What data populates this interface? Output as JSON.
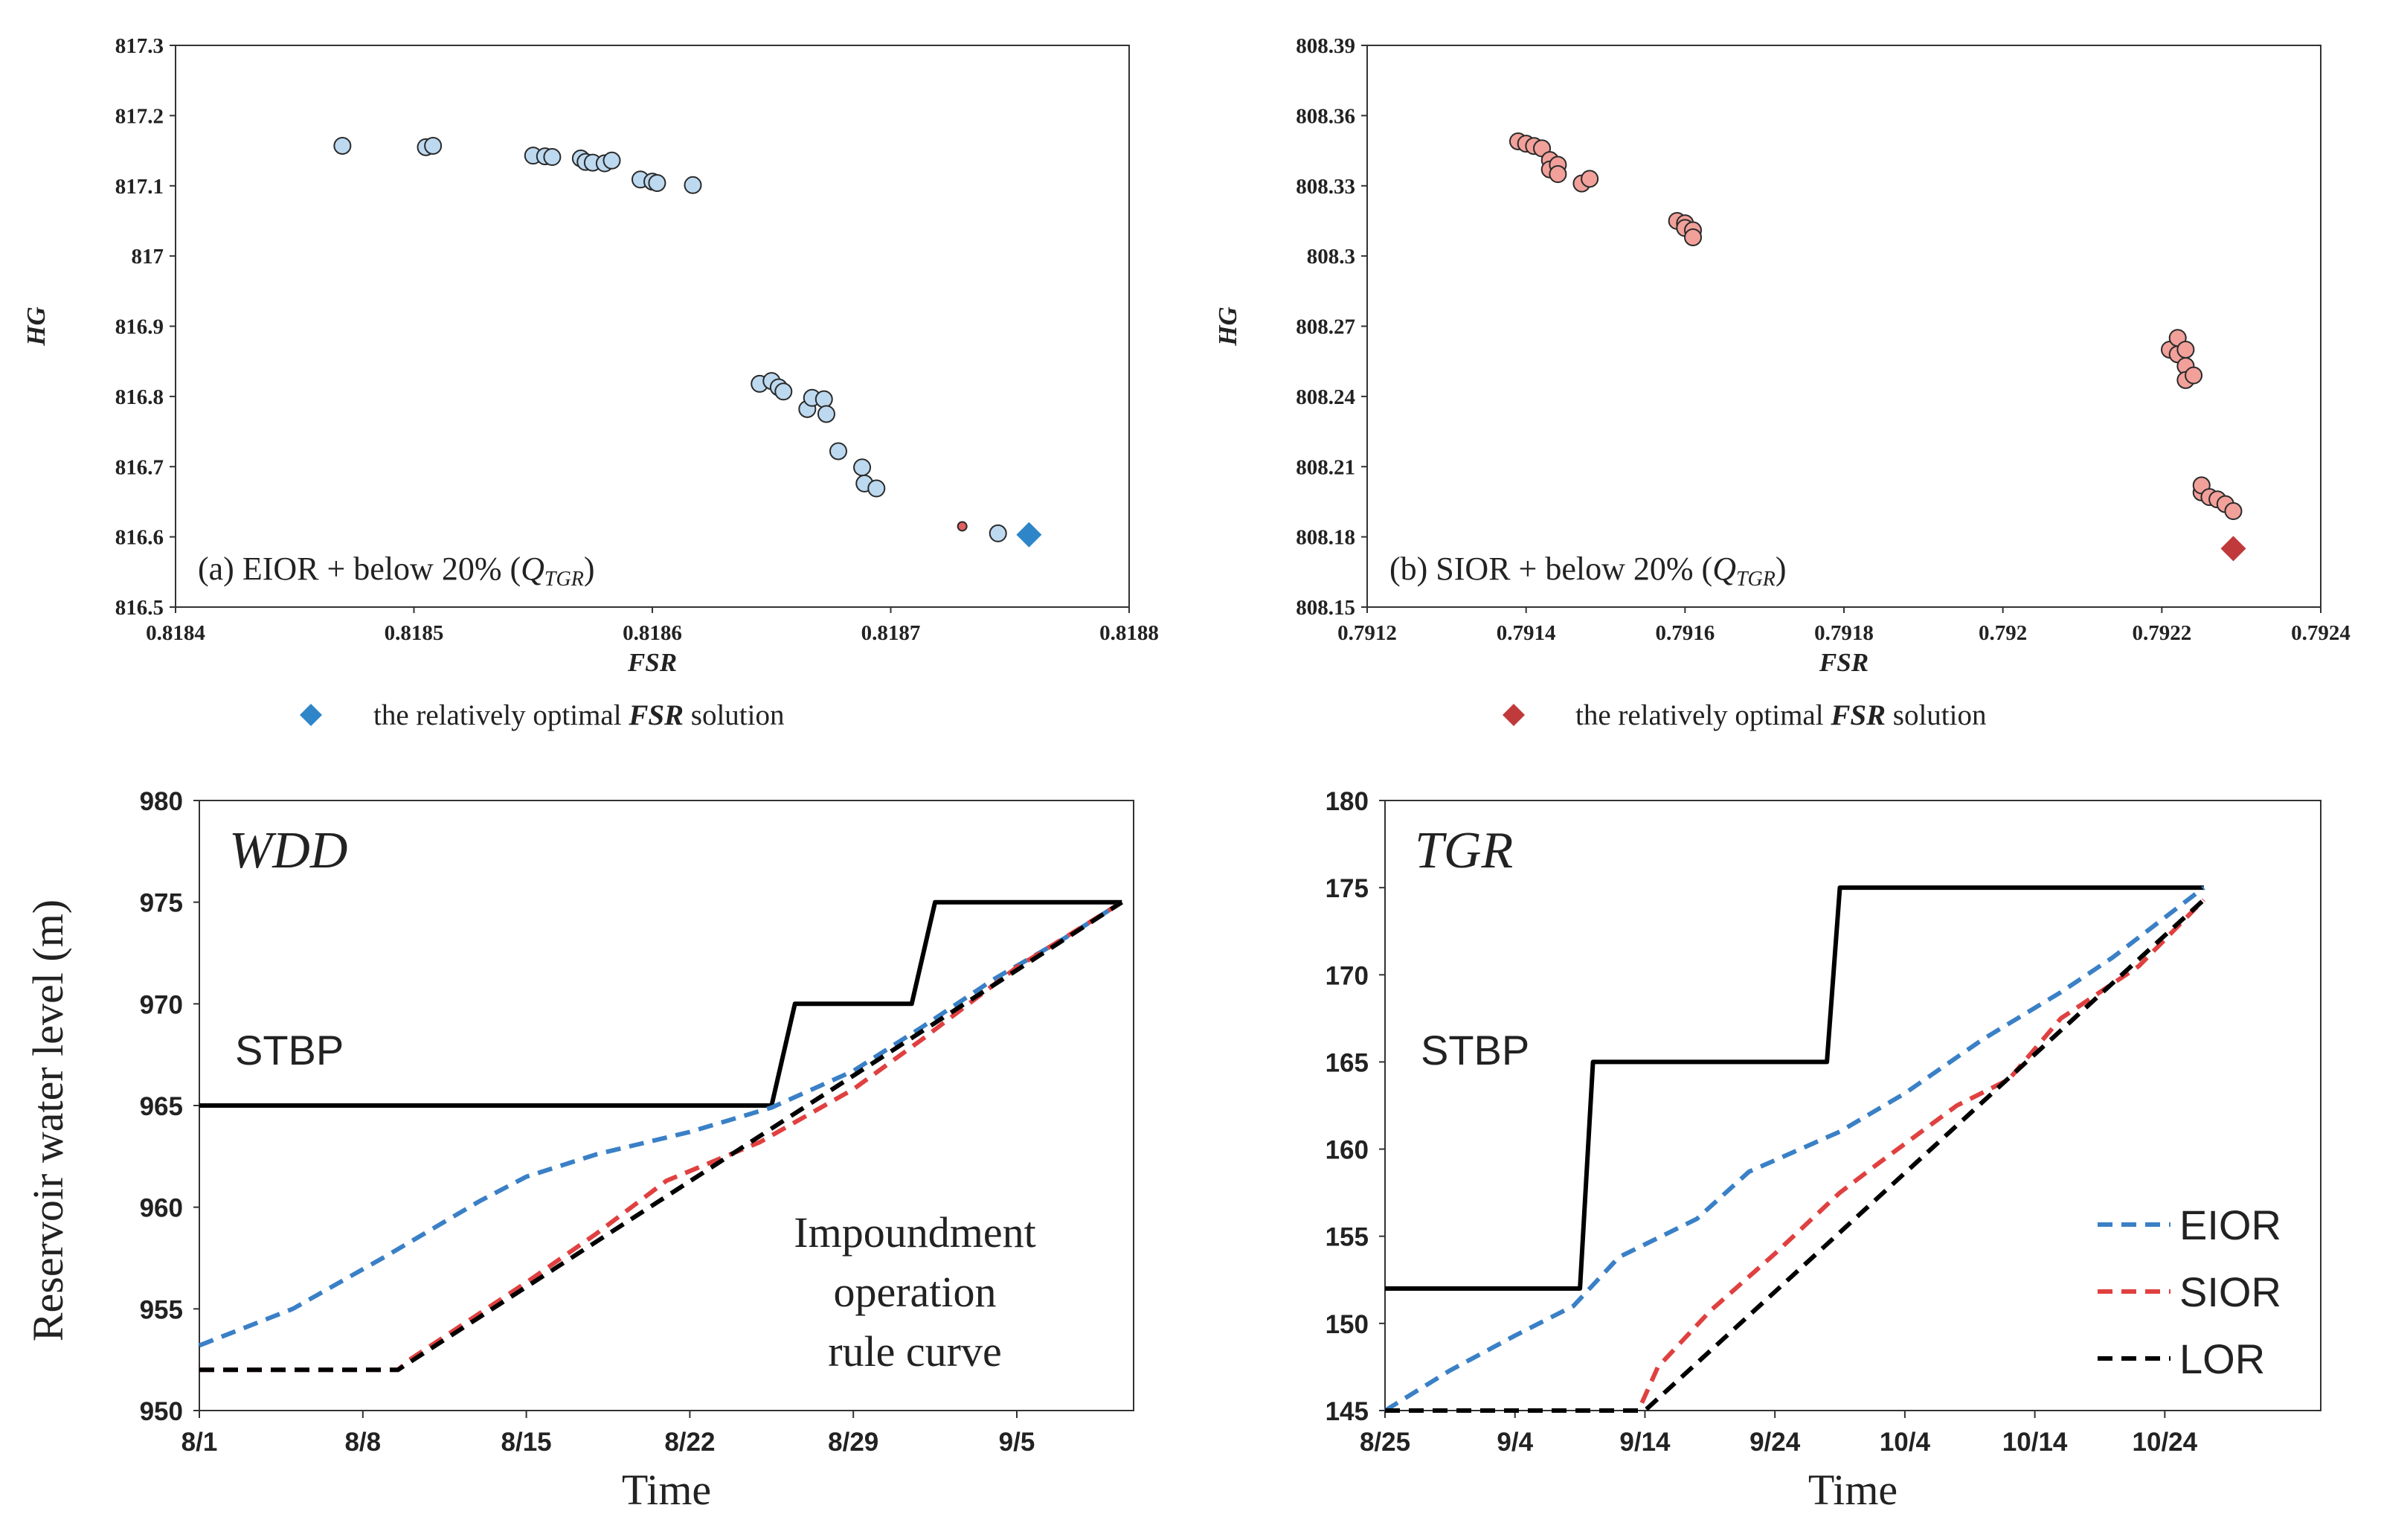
{
  "chart_data": [
    {
      "id": "a",
      "type": "scatter",
      "panel_label": "(a) EIOR + below 20% (",
      "panel_label_var": "Q",
      "panel_label_sub": "TGR",
      "panel_label_end": ")",
      "xlabel": "FSR",
      "ylabel": "HG",
      "xlim": [
        0.8184,
        0.8188
      ],
      "ylim": [
        816.5,
        817.3
      ],
      "xticks": [
        "0.8184",
        "0.8185",
        "0.8186",
        "0.8187",
        "0.8188"
      ],
      "yticks": [
        "816.5",
        "816.6",
        "816.7",
        "816.8",
        "816.9",
        "817",
        "817.1",
        "817.2",
        "817.3"
      ],
      "point_color": "#bcd9f0",
      "optimal_color": "#2e86c8",
      "points": [
        [
          0.81847,
          817.157
        ],
        [
          0.818505,
          817.155
        ],
        [
          0.818508,
          817.157
        ],
        [
          0.81855,
          817.143
        ],
        [
          0.818555,
          817.142
        ],
        [
          0.818558,
          817.141
        ],
        [
          0.81857,
          817.139
        ],
        [
          0.818572,
          817.134
        ],
        [
          0.818575,
          817.133
        ],
        [
          0.81858,
          817.132
        ],
        [
          0.818583,
          817.136
        ],
        [
          0.818595,
          817.109
        ],
        [
          0.8186,
          817.106
        ],
        [
          0.818602,
          817.104
        ],
        [
          0.818617,
          817.101
        ],
        [
          0.818645,
          816.818
        ],
        [
          0.81865,
          816.822
        ],
        [
          0.818653,
          816.813
        ],
        [
          0.818655,
          816.807
        ],
        [
          0.818665,
          816.782
        ],
        [
          0.818667,
          816.798
        ],
        [
          0.818672,
          816.796
        ],
        [
          0.818673,
          816.775
        ],
        [
          0.818678,
          816.722
        ],
        [
          0.818688,
          816.699
        ],
        [
          0.818689,
          816.676
        ],
        [
          0.818694,
          816.669
        ],
        [
          0.818745,
          816.605
        ]
      ],
      "small_points": [
        [
          0.81873,
          816.615
        ]
      ],
      "optimal": [
        0.818758,
        816.603
      ],
      "legend_label_pre": "the relatively  optimal ",
      "legend_label_var": "FSR",
      "legend_label_post": " solution"
    },
    {
      "id": "b",
      "type": "scatter",
      "panel_label": "(b) SIOR + below 20% (",
      "panel_label_var": "Q",
      "panel_label_sub": "TGR",
      "panel_label_end": ")",
      "xlabel": "FSR",
      "ylabel": "HG",
      "xlim": [
        0.7912,
        0.7924
      ],
      "ylim": [
        808.15,
        808.39
      ],
      "xticks": [
        "0.7912",
        "0.7914",
        "0.7916",
        "0.7918",
        "0.792",
        "0.7922",
        "0.7924"
      ],
      "yticks": [
        "808.15",
        "808.18",
        "808.21",
        "808.24",
        "808.27",
        "808.3",
        "808.33",
        "808.36",
        "808.39"
      ],
      "point_color": "#f2a09a",
      "optimal_color": "#c0393b",
      "points": [
        [
          0.79139,
          808.349
        ],
        [
          0.7914,
          808.348
        ],
        [
          0.79141,
          808.347
        ],
        [
          0.79142,
          808.346
        ],
        [
          0.79143,
          808.341
        ],
        [
          0.79143,
          808.337
        ],
        [
          0.79144,
          808.339
        ],
        [
          0.79144,
          808.335
        ],
        [
          0.79147,
          808.331
        ],
        [
          0.79148,
          808.333
        ],
        [
          0.79159,
          808.315
        ],
        [
          0.7916,
          808.314
        ],
        [
          0.7916,
          808.312
        ],
        [
          0.79161,
          808.311
        ],
        [
          0.79161,
          808.308
        ],
        [
          0.79221,
          808.26
        ],
        [
          0.79222,
          808.258
        ],
        [
          0.79222,
          808.265
        ],
        [
          0.79223,
          808.253
        ],
        [
          0.79223,
          808.26
        ],
        [
          0.79223,
          808.247
        ],
        [
          0.79224,
          808.249
        ],
        [
          0.79225,
          808.199
        ],
        [
          0.79225,
          808.202
        ],
        [
          0.79226,
          808.197
        ],
        [
          0.79227,
          808.196
        ],
        [
          0.79228,
          808.194
        ],
        [
          0.79229,
          808.191
        ]
      ],
      "optimal": [
        0.79229,
        808.175
      ],
      "legend_label_pre": "the relatively  optimal ",
      "legend_label_var": "FSR",
      "legend_label_post": " solution"
    },
    {
      "id": "c",
      "type": "line",
      "title": "WDD",
      "xlabel": "Time",
      "ylabel": "Reservoir water level (m)",
      "xlim": [
        0,
        40
      ],
      "ylim": [
        950,
        980
      ],
      "xticks": [
        [
          0,
          "8/1"
        ],
        [
          7,
          "8/8"
        ],
        [
          14,
          "8/15"
        ],
        [
          21,
          "8/22"
        ],
        [
          28,
          "8/29"
        ],
        [
          35,
          "9/5"
        ]
      ],
      "yticks": [
        "950",
        "955",
        "960",
        "965",
        "970",
        "975",
        "980"
      ],
      "stbp_label": "STBP",
      "annotation": [
        "Impoundment",
        "operation",
        "rule curve"
      ],
      "series": [
        {
          "name": "STBP",
          "color": "#000000",
          "dash": "none",
          "points": [
            [
              0,
              965
            ],
            [
              24.5,
              965
            ],
            [
              25.5,
              970
            ],
            [
              30.5,
              970
            ],
            [
              31.5,
              975
            ],
            [
              39.5,
              975
            ]
          ]
        },
        {
          "name": "EIOR",
          "color": "#3a80c6",
          "dash": "20,12",
          "points": [
            [
              0,
              953.2
            ],
            [
              4,
              955
            ],
            [
              8,
              957.6
            ],
            [
              12,
              960.3
            ],
            [
              14,
              961.5
            ],
            [
              17,
              962.6
            ],
            [
              21,
              963.7
            ],
            [
              24.5,
              964.9
            ],
            [
              28,
              966.7
            ],
            [
              31,
              968.9
            ],
            [
              34,
              971.2
            ],
            [
              37,
              973.2
            ],
            [
              39.5,
              975
            ]
          ]
        },
        {
          "name": "SIOR",
          "color": "#e04040",
          "dash": "20,12",
          "points": [
            [
              0,
              952
            ],
            [
              8.5,
              952
            ],
            [
              9,
              952.5
            ],
            [
              14,
              956.3
            ],
            [
              17,
              958.7
            ],
            [
              20,
              961.3
            ],
            [
              24,
              963.2
            ],
            [
              28,
              965.8
            ],
            [
              31,
              968.3
            ],
            [
              35,
              971.8
            ],
            [
              39.5,
              975
            ]
          ]
        },
        {
          "name": "LOR",
          "color": "#000000",
          "dash": "20,12",
          "points": [
            [
              0,
              952
            ],
            [
              8.5,
              952
            ],
            [
              39.5,
              975
            ]
          ]
        }
      ]
    },
    {
      "id": "d",
      "type": "line",
      "title": "TGR",
      "xlabel": "Time",
      "ylabel": "",
      "xlim": [
        0,
        72
      ],
      "ylim": [
        145,
        180
      ],
      "xticks": [
        [
          0,
          "8/25"
        ],
        [
          10,
          "9/4"
        ],
        [
          20,
          "9/14"
        ],
        [
          30,
          "9/24"
        ],
        [
          40,
          "10/4"
        ],
        [
          50,
          "10/14"
        ],
        [
          60,
          "10/24"
        ]
      ],
      "yticks": [
        "145",
        "150",
        "155",
        "160",
        "165",
        "170",
        "175",
        "180"
      ],
      "stbp_label": "STBP",
      "series": [
        {
          "name": "STBP",
          "color": "#000000",
          "dash": "none",
          "points": [
            [
              0,
              152
            ],
            [
              15,
              152
            ],
            [
              16,
              165
            ],
            [
              34,
              165
            ],
            [
              35,
              175
            ],
            [
              63,
              175
            ]
          ]
        },
        {
          "name": "EIOR",
          "color": "#3a80c6",
          "dash": "20,12",
          "points": [
            [
              0,
              145
            ],
            [
              5,
              147.3
            ],
            [
              10,
              149.3
            ],
            [
              14.5,
              151
            ],
            [
              18,
              153.8
            ],
            [
              24,
              156
            ],
            [
              28,
              158.7
            ],
            [
              35,
              161
            ],
            [
              40,
              163.2
            ],
            [
              46,
              166.3
            ],
            [
              52,
              169
            ],
            [
              56,
              171
            ],
            [
              63,
              175
            ]
          ]
        },
        {
          "name": "SIOR",
          "color": "#e04040",
          "dash": "20,12",
          "points": [
            [
              0,
              145
            ],
            [
              19.5,
              145
            ],
            [
              21,
              147.5
            ],
            [
              25,
              150.7
            ],
            [
              30,
              154
            ],
            [
              35,
              157.5
            ],
            [
              38,
              159.2
            ],
            [
              44,
              162.5
            ],
            [
              48,
              164
            ],
            [
              52,
              167.5
            ],
            [
              58,
              170.5
            ],
            [
              63,
              174.3
            ]
          ]
        },
        {
          "name": "LOR",
          "color": "#000000",
          "dash": "20,12",
          "points": [
            [
              0,
              145
            ],
            [
              20,
              145
            ],
            [
              63,
              174.3
            ]
          ]
        }
      ],
      "legend": [
        "EIOR",
        "SIOR",
        "LOR"
      ]
    }
  ]
}
